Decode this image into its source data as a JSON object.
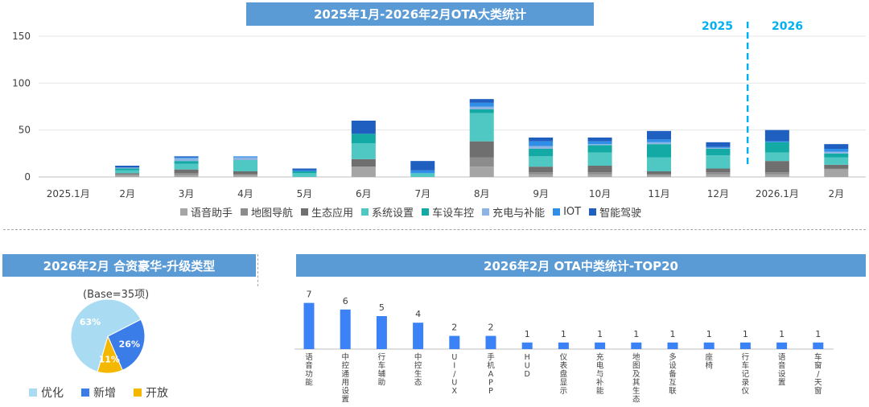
{
  "top_chart": {
    "title": "2025年1月-2026年2月OTA大类统计",
    "year_labels": [
      "2025",
      "2026"
    ],
    "chart_data": {
      "type": "bar",
      "stacked": true,
      "title": "2025年1月-2026年2月OTA大类统计",
      "categories": [
        "2025.1月",
        "2月",
        "3月",
        "4月",
        "5月",
        "6月",
        "7月",
        "8月",
        "9月",
        "10月",
        "11月",
        "12月",
        "2026.1月",
        "2月"
      ],
      "ylim": [
        0,
        150
      ],
      "yticks": [
        0,
        50,
        100,
        150
      ],
      "series": [
        {
          "name": "语音助手",
          "color": "#a5a5a5",
          "values": [
            0,
            2,
            2,
            2,
            0,
            11,
            0,
            11,
            3,
            3,
            2,
            3,
            3,
            8
          ]
        },
        {
          "name": "地图导航",
          "color": "#8c8c8c",
          "values": [
            0,
            1,
            2,
            1,
            0,
            0,
            0,
            10,
            2,
            2,
            1,
            2,
            2,
            1
          ]
        },
        {
          "name": "生态应用",
          "color": "#6f6f6f",
          "values": [
            0,
            1,
            4,
            3,
            0,
            8,
            0,
            17,
            6,
            7,
            3,
            4,
            12,
            4
          ]
        },
        {
          "name": "系统设置",
          "color": "#4fc7c3",
          "values": [
            0,
            3,
            6,
            12,
            4,
            17,
            4,
            30,
            11,
            14,
            15,
            14,
            9,
            8
          ]
        },
        {
          "name": "车设车控",
          "color": "#13aaa6",
          "values": [
            0,
            2,
            3,
            0,
            2,
            10,
            0,
            4,
            8,
            8,
            14,
            7,
            11,
            4
          ]
        },
        {
          "name": "充电与补能",
          "color": "#8db4e2",
          "values": [
            0,
            1,
            3,
            3,
            0,
            0,
            0,
            3,
            3,
            1,
            2,
            1,
            0,
            2
          ]
        },
        {
          "name": "IOT",
          "color": "#2f8fe8",
          "values": [
            0,
            0,
            1,
            1,
            1,
            0,
            3,
            4,
            5,
            3,
            3,
            1,
            1,
            3
          ]
        },
        {
          "name": "智能驾驶",
          "color": "#1f5fbf",
          "values": [
            0,
            2,
            1,
            0,
            2,
            14,
            10,
            4,
            4,
            4,
            9,
            5,
            12,
            5
          ]
        }
      ]
    }
  },
  "pie": {
    "title": "2026年2月 合资豪华-升级类型",
    "base": "(Base=35项)",
    "chart_data": {
      "type": "pie",
      "title": "2026年2月 合资豪华-升级类型",
      "slices": [
        {
          "name": "优化",
          "value": 63,
          "label": "63%",
          "color": "#a9dcf3"
        },
        {
          "name": "新增",
          "value": 26,
          "label": "26%",
          "color": "#3b7de8"
        },
        {
          "name": "开放",
          "value": 11,
          "label": "11%",
          "color": "#f5b800"
        }
      ]
    }
  },
  "bar2": {
    "title": "2026年2月 OTA中类统计-TOP20",
    "chart_data": {
      "type": "bar",
      "title": "2026年2月 OTA中类统计-TOP20",
      "color": "#3b82f6",
      "categories": [
        "语音功能",
        "中控通用设置",
        "行车辅助",
        "中控生态",
        "UI/UX",
        "手机APP",
        "HUD",
        "仪表盘显示",
        "充电与补能",
        "地图及其生态",
        "多设备互联",
        "座椅",
        "行车记录仪",
        "语音设置",
        "车窗/天窗"
      ],
      "values": [
        7,
        6,
        5,
        4,
        2,
        2,
        1,
        1,
        1,
        1,
        1,
        1,
        1,
        1,
        1
      ],
      "ylim": [
        0,
        8
      ]
    }
  }
}
